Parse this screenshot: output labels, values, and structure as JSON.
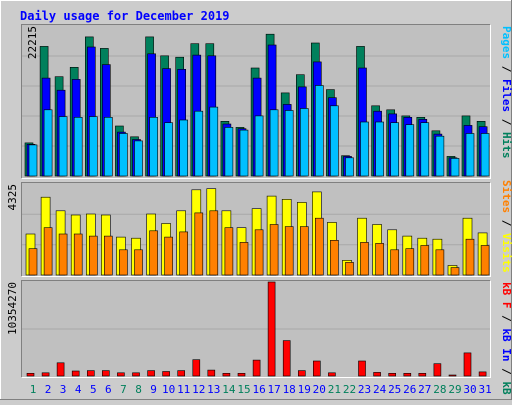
{
  "title": "Daily usage for December 2019",
  "colors": {
    "title": "#0000ff",
    "hits": "#00805c",
    "files": "#0000ff",
    "pages": "#00c0ff",
    "visits": "#ffff00",
    "sites": "#ff8000",
    "kbin": "#0000ff",
    "kbout": "#ff8000",
    "kbf": "#ff0000",
    "weekend": "#00805c",
    "weekday": "#0000ff",
    "panel_bg": "#c0c0c0",
    "frame_bg": "#cccccc"
  },
  "panels": {
    "top": {
      "max_label": "22215",
      "legend": [
        {
          "text": "Pages",
          "color": "#00c0ff"
        },
        {
          "text": " / ",
          "color": "#000000"
        },
        {
          "text": "Files",
          "color": "#0000ff"
        },
        {
          "text": " / ",
          "color": "#000000"
        },
        {
          "text": "Hits",
          "color": "#00805c"
        }
      ]
    },
    "middle": {
      "max_label": "4325",
      "legend": [
        {
          "text": "Sites",
          "color": "#ff8000"
        },
        {
          "text": " / ",
          "color": "#000000"
        },
        {
          "text": "Visits",
          "color": "#ffff00"
        }
      ]
    },
    "bottom": {
      "max_label": "10354270",
      "legend": [
        {
          "text": "kB F",
          "color": "#ff0000"
        },
        {
          "text": " / ",
          "color": "#000000"
        },
        {
          "text": "kB In",
          "color": "#0000ff"
        },
        {
          "text": " / ",
          "color": "#000000"
        },
        {
          "text": "kB Out",
          "color": "#00805c"
        }
      ]
    }
  },
  "chart_data": {
    "type": "bar",
    "x": [
      "1",
      "2",
      "3",
      "4",
      "5",
      "6",
      "7",
      "8",
      "9",
      "10",
      "11",
      "12",
      "13",
      "14",
      "15",
      "16",
      "17",
      "18",
      "19",
      "20",
      "21",
      "22",
      "23",
      "24",
      "25",
      "26",
      "27",
      "28",
      "29",
      "30",
      "31"
    ],
    "weekend_days": [
      1,
      7,
      8,
      14,
      15,
      21,
      22,
      28,
      29
    ],
    "top_max": 22215,
    "middle_max": 4325,
    "bottom_max": 10354270,
    "series": [
      {
        "name": "Hits",
        "panel": "top",
        "values": [
          4900,
          19200,
          14700,
          16100,
          20600,
          18900,
          7400,
          5800,
          20600,
          17800,
          17600,
          19600,
          19600,
          8100,
          7200,
          16000,
          21000,
          12300,
          15000,
          19700,
          12800,
          3000,
          19200,
          10400,
          9800,
          8900,
          8700,
          6700,
          2900,
          8900,
          8100
        ]
      },
      {
        "name": "Files",
        "panel": "top",
        "values": [
          4700,
          14500,
          12700,
          14300,
          19100,
          16500,
          6500,
          5400,
          18100,
          15900,
          15800,
          17900,
          17800,
          7700,
          7000,
          14500,
          19400,
          10600,
          13200,
          16900,
          11600,
          2900,
          16000,
          9600,
          9200,
          8700,
          8400,
          6200,
          2700,
          7500,
          7300
        ]
      },
      {
        "name": "Pages",
        "panel": "top",
        "values": [
          4600,
          9800,
          8800,
          8700,
          8800,
          8700,
          6300,
          5200,
          8700,
          7900,
          8300,
          9600,
          10200,
          7200,
          6800,
          8900,
          9800,
          9700,
          10000,
          13400,
          10400,
          2700,
          8000,
          8000,
          7900,
          7600,
          7900,
          5900,
          2600,
          6300,
          6300
        ]
      },
      {
        "name": "Visits",
        "panel": "middle",
        "values": [
          1950,
          3700,
          3050,
          2850,
          2900,
          2850,
          1800,
          1750,
          2900,
          2450,
          3050,
          4050,
          4100,
          3050,
          2250,
          3150,
          3750,
          3600,
          3450,
          3950,
          2500,
          700,
          2700,
          2400,
          2150,
          1850,
          1750,
          1700,
          450,
          2700,
          2000
        ]
      },
      {
        "name": "Sites",
        "panel": "middle",
        "values": [
          1250,
          2250,
          1950,
          1950,
          1850,
          1850,
          1200,
          1200,
          2100,
          1800,
          2050,
          2950,
          3050,
          2250,
          1550,
          2150,
          2400,
          2300,
          2300,
          2700,
          1650,
          600,
          1550,
          1500,
          1200,
          1250,
          1400,
          1200,
          350,
          1700,
          1400
        ]
      },
      {
        "name": "kB F",
        "panel": "bottom",
        "values": [
          300000,
          350000,
          1450000,
          550000,
          600000,
          600000,
          350000,
          350000,
          600000,
          500000,
          600000,
          1800000,
          650000,
          300000,
          300000,
          1750000,
          10354270,
          3900000,
          600000,
          1650000,
          350000,
          0,
          1650000,
          400000,
          300000,
          300000,
          300000,
          1350000,
          100000,
          2550000,
          450000
        ]
      }
    ]
  }
}
